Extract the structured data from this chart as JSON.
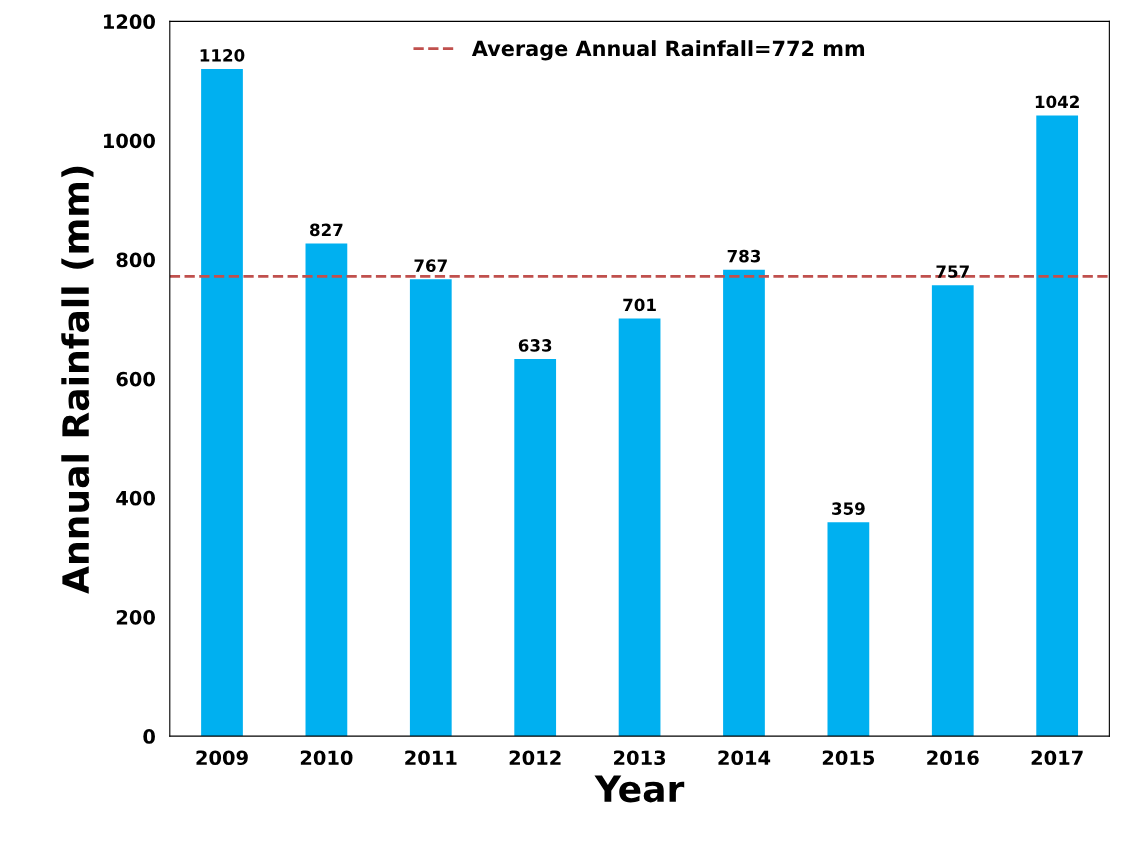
{
  "chart_data": {
    "type": "bar",
    "xlabel": "Year",
    "ylabel": "Annual Rainfall (mm)",
    "categories": [
      "2009",
      "2010",
      "2011",
      "2012",
      "2013",
      "2014",
      "2015",
      "2016",
      "2017"
    ],
    "values": [
      1120,
      827,
      767,
      633,
      701,
      783,
      359,
      757,
      1042
    ],
    "color": "#00b0f0",
    "data_labels": true,
    "grid": false,
    "legend": "top",
    "ylim": [
      0,
      1200
    ],
    "yticks": [
      0,
      200,
      400,
      600,
      800,
      1000,
      1200
    ],
    "ref_lines": [
      {
        "axis": "y",
        "value": 772,
        "label": "Average Annual Rainfall=772 mm",
        "color": "#c0504d",
        "line_style": "dashed"
      }
    ]
  }
}
